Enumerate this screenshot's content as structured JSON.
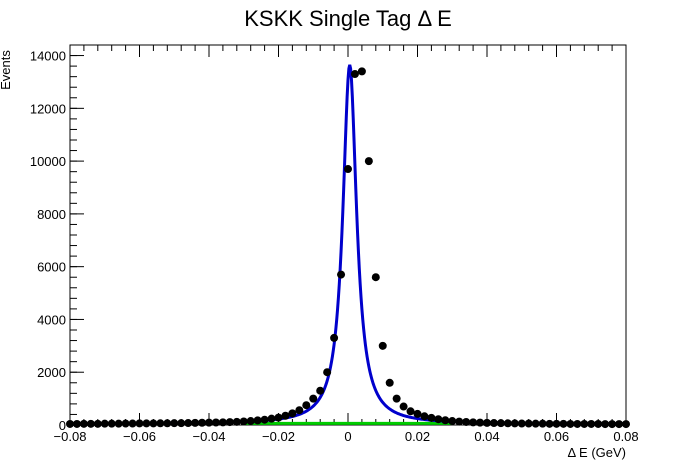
{
  "chart_data": {
    "type": "scatter",
    "title": "KSKK Single Tag Δ E",
    "xlabel": "Δ E (GeV)",
    "ylabel": "Events",
    "xlim": [
      -0.08,
      0.08
    ],
    "ylim": [
      0,
      14400
    ],
    "x_ticks": [
      -0.08,
      -0.06,
      -0.04,
      -0.02,
      0,
      0.02,
      0.04,
      0.06,
      0.08
    ],
    "x_tick_labels": [
      "−0.08",
      "−0.06",
      "−0.04",
      "−0.02",
      "0",
      "0.02",
      "0.04",
      "0.06",
      "0.08"
    ],
    "y_ticks": [
      0,
      2000,
      4000,
      6000,
      8000,
      10000,
      12000,
      14000
    ],
    "y_tick_labels": [
      "0",
      "2000",
      "4000",
      "6000",
      "8000",
      "10000",
      "12000",
      "14000"
    ],
    "grid": false,
    "colors": {
      "data": "#000000",
      "fit": "#0000cc",
      "background": "#00cc00"
    },
    "series": [
      {
        "type": "points",
        "x": [
          -0.08,
          -0.078,
          -0.076,
          -0.074,
          -0.072,
          -0.07,
          -0.068,
          -0.066,
          -0.064,
          -0.062,
          -0.06,
          -0.058,
          -0.056,
          -0.054,
          -0.052,
          -0.05,
          -0.048,
          -0.046,
          -0.044,
          -0.042,
          -0.04,
          -0.038,
          -0.036,
          -0.034,
          -0.032,
          -0.03,
          -0.028,
          -0.026,
          -0.024,
          -0.022,
          -0.02,
          -0.018,
          -0.016,
          -0.014,
          -0.012,
          -0.01,
          -0.008,
          -0.006,
          -0.004,
          -0.002,
          0,
          0.002,
          0.004,
          0.006,
          0.008,
          0.01,
          0.012,
          0.014,
          0.016,
          0.018,
          0.02,
          0.022,
          0.024,
          0.026,
          0.028,
          0.03,
          0.032,
          0.034,
          0.036,
          0.038,
          0.04,
          0.042,
          0.044,
          0.046,
          0.048,
          0.05,
          0.052,
          0.054,
          0.056,
          0.058,
          0.06,
          0.062,
          0.064,
          0.066,
          0.068,
          0.07,
          0.072,
          0.074,
          0.076,
          0.078,
          0.08
        ],
        "y": [
          40,
          40,
          45,
          45,
          45,
          50,
          50,
          50,
          55,
          55,
          60,
          60,
          60,
          65,
          65,
          70,
          70,
          75,
          80,
          85,
          90,
          95,
          100,
          110,
          120,
          135,
          150,
          175,
          200,
          240,
          280,
          350,
          440,
          560,
          750,
          1000,
          1300,
          2000,
          3300,
          5700,
          9700,
          13300,
          13400,
          10000,
          5600,
          3000,
          1600,
          1000,
          700,
          520,
          420,
          330,
          270,
          220,
          180,
          150,
          130,
          115,
          100,
          90,
          80,
          75,
          70,
          65,
          60,
          55,
          55,
          50,
          50,
          45,
          45,
          45,
          40,
          40,
          40,
          40,
          40,
          35,
          35,
          35,
          35
        ]
      }
    ],
    "fit_curve": {
      "name": "",
      "peak_x": 0.0005,
      "peak_y": 13650,
      "width": 0.0024,
      "baseline": 40
    },
    "background_curve": {
      "name": "",
      "level": 60
    }
  }
}
